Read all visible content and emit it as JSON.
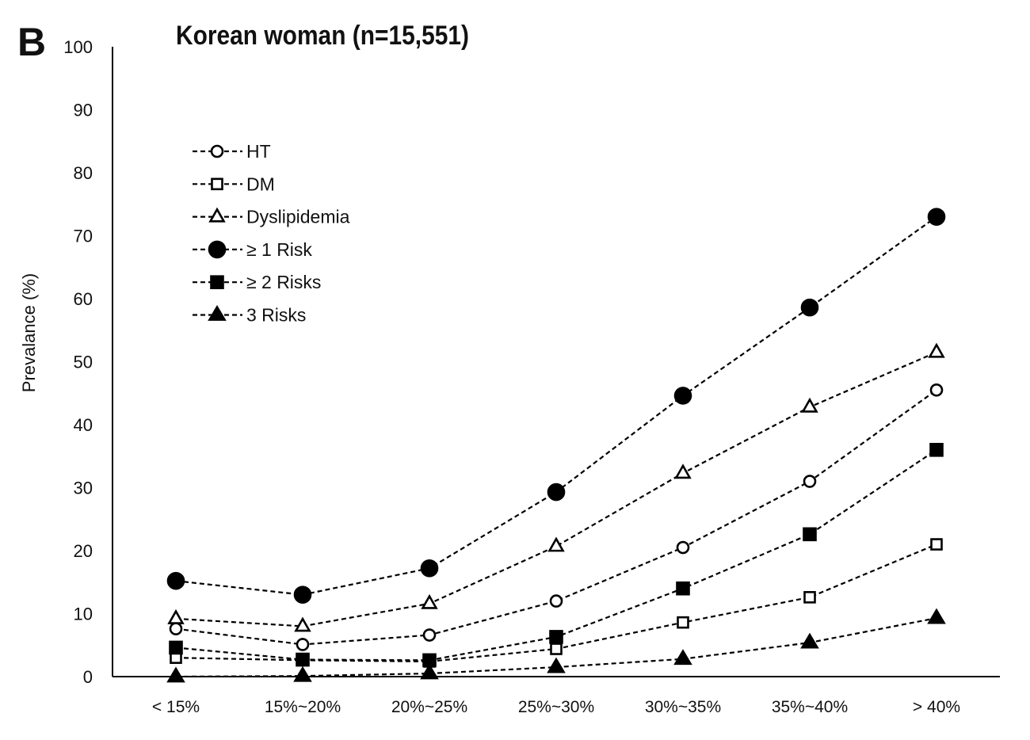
{
  "figure": {
    "panel_label": "B",
    "title": "Korean woman (n=15,551)"
  },
  "chart_data": {
    "type": "line",
    "title": "Korean woman (n=15,551)",
    "xlabel": "",
    "ylabel": "Prevalance (%)",
    "ylim": [
      0,
      100
    ],
    "yticks": [
      "0",
      "10",
      "20",
      "30",
      "40",
      "50",
      "60",
      "70",
      "80",
      "90",
      "100"
    ],
    "categories": [
      "< 15%",
      "15%~20%",
      "20%~25%",
      "25%~30%",
      "30%~35%",
      "35%~40%",
      "> 40%"
    ],
    "grid": false,
    "legend_position": "top-left",
    "series": [
      {
        "name": "HT",
        "marker": "circle-open",
        "values": [
          7.6,
          5.1,
          6.6,
          12.0,
          20.5,
          31.0,
          45.5
        ]
      },
      {
        "name": "DM",
        "marker": "square-open",
        "values": [
          3.0,
          2.6,
          2.4,
          4.4,
          8.6,
          12.6,
          21.0
        ]
      },
      {
        "name": "Dyslipidemia",
        "marker": "triangle-open",
        "values": [
          9.2,
          8.0,
          11.6,
          20.7,
          32.3,
          42.8,
          51.5
        ]
      },
      {
        "name": "≥ 1 Risk",
        "marker": "circle-filled",
        "values": [
          15.2,
          13.0,
          17.2,
          29.3,
          44.6,
          58.6,
          73.0
        ]
      },
      {
        "name": "≥ 2 Risks",
        "marker": "square-filled",
        "values": [
          4.6,
          2.7,
          2.6,
          6.3,
          14.0,
          22.6,
          36.0
        ]
      },
      {
        "name": "3 Risks",
        "marker": "triangle-filled",
        "values": [
          0.0,
          0.1,
          0.5,
          1.5,
          2.8,
          5.4,
          9.3
        ]
      }
    ]
  }
}
